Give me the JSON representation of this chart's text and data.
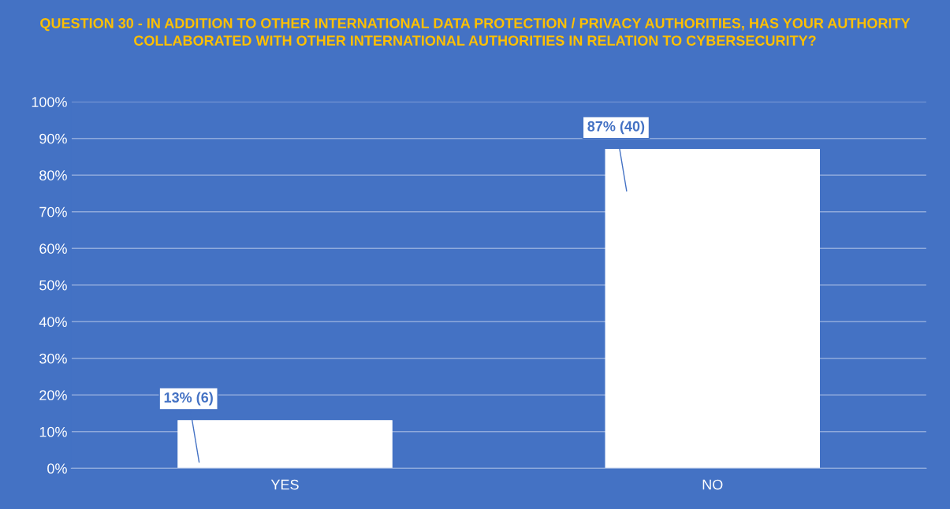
{
  "chart_data": {
    "type": "bar",
    "title": "QUESTION 30 - IN ADDITION TO OTHER INTERNATIONAL DATA PROTECTION / PRIVACY AUTHORITIES, HAS YOUR AUTHORITY COLLABORATED WITH OTHER INTERNATIONAL AUTHORITIES IN RELATION TO CYBERSECURITY?",
    "categories": [
      "YES",
      "NO"
    ],
    "values": [
      13,
      87
    ],
    "value_labels": [
      "13% (6)",
      "87% (40)"
    ],
    "color": "#ffffff",
    "ylim": [
      0,
      100
    ],
    "yticks": [
      {
        "value": 0,
        "label": "0%"
      },
      {
        "value": 10,
        "label": "10%"
      },
      {
        "value": 20,
        "label": "20%"
      },
      {
        "value": 30,
        "label": "30%"
      },
      {
        "value": 40,
        "label": "40%"
      },
      {
        "value": 50,
        "label": "50%"
      },
      {
        "value": 60,
        "label": "60%"
      },
      {
        "value": 70,
        "label": "70%"
      },
      {
        "value": 80,
        "label": "80%"
      },
      {
        "value": 90,
        "label": "90%"
      },
      {
        "value": 100,
        "label": "100%"
      }
    ],
    "grid": "y"
  }
}
